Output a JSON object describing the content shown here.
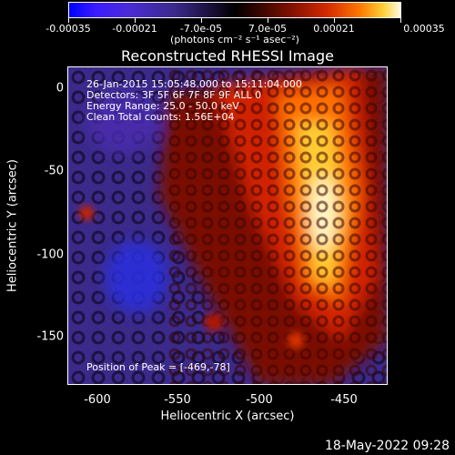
{
  "colorbar": {
    "ticks": [
      "-0.00035",
      "-0.00021",
      "-7.0e-05",
      "7.0e-05",
      "0.00021",
      "0.00035"
    ],
    "units": "(photons cm⁻² s⁻¹ asec⁻²)"
  },
  "title": "Reconstructed RHESSI Image",
  "annotations": {
    "time": "26-Jan-2015 15:05:48.000 to 15:11:04.000",
    "detectors": "Detectors: 3F 5F 6F 7F 8F 9F ALL 0",
    "energy": "Energy Range: 25.0 - 50.0 keV",
    "clean": "Clean    Total counts: 1.56E+04",
    "peak": "Position of Peak = [-469,-78]"
  },
  "axes": {
    "xlabel": "Heliocentric X (arcsec)",
    "ylabel": "Heliocentric Y (arcsec)",
    "xticks": [
      "-600",
      "-550",
      "-500",
      "-450"
    ],
    "yticks": [
      "0",
      "-50",
      "-100",
      "-150"
    ]
  },
  "datestamp": "18-May-2022 09:28",
  "colors": {
    "background": "#000000",
    "text": "#ffffff"
  }
}
